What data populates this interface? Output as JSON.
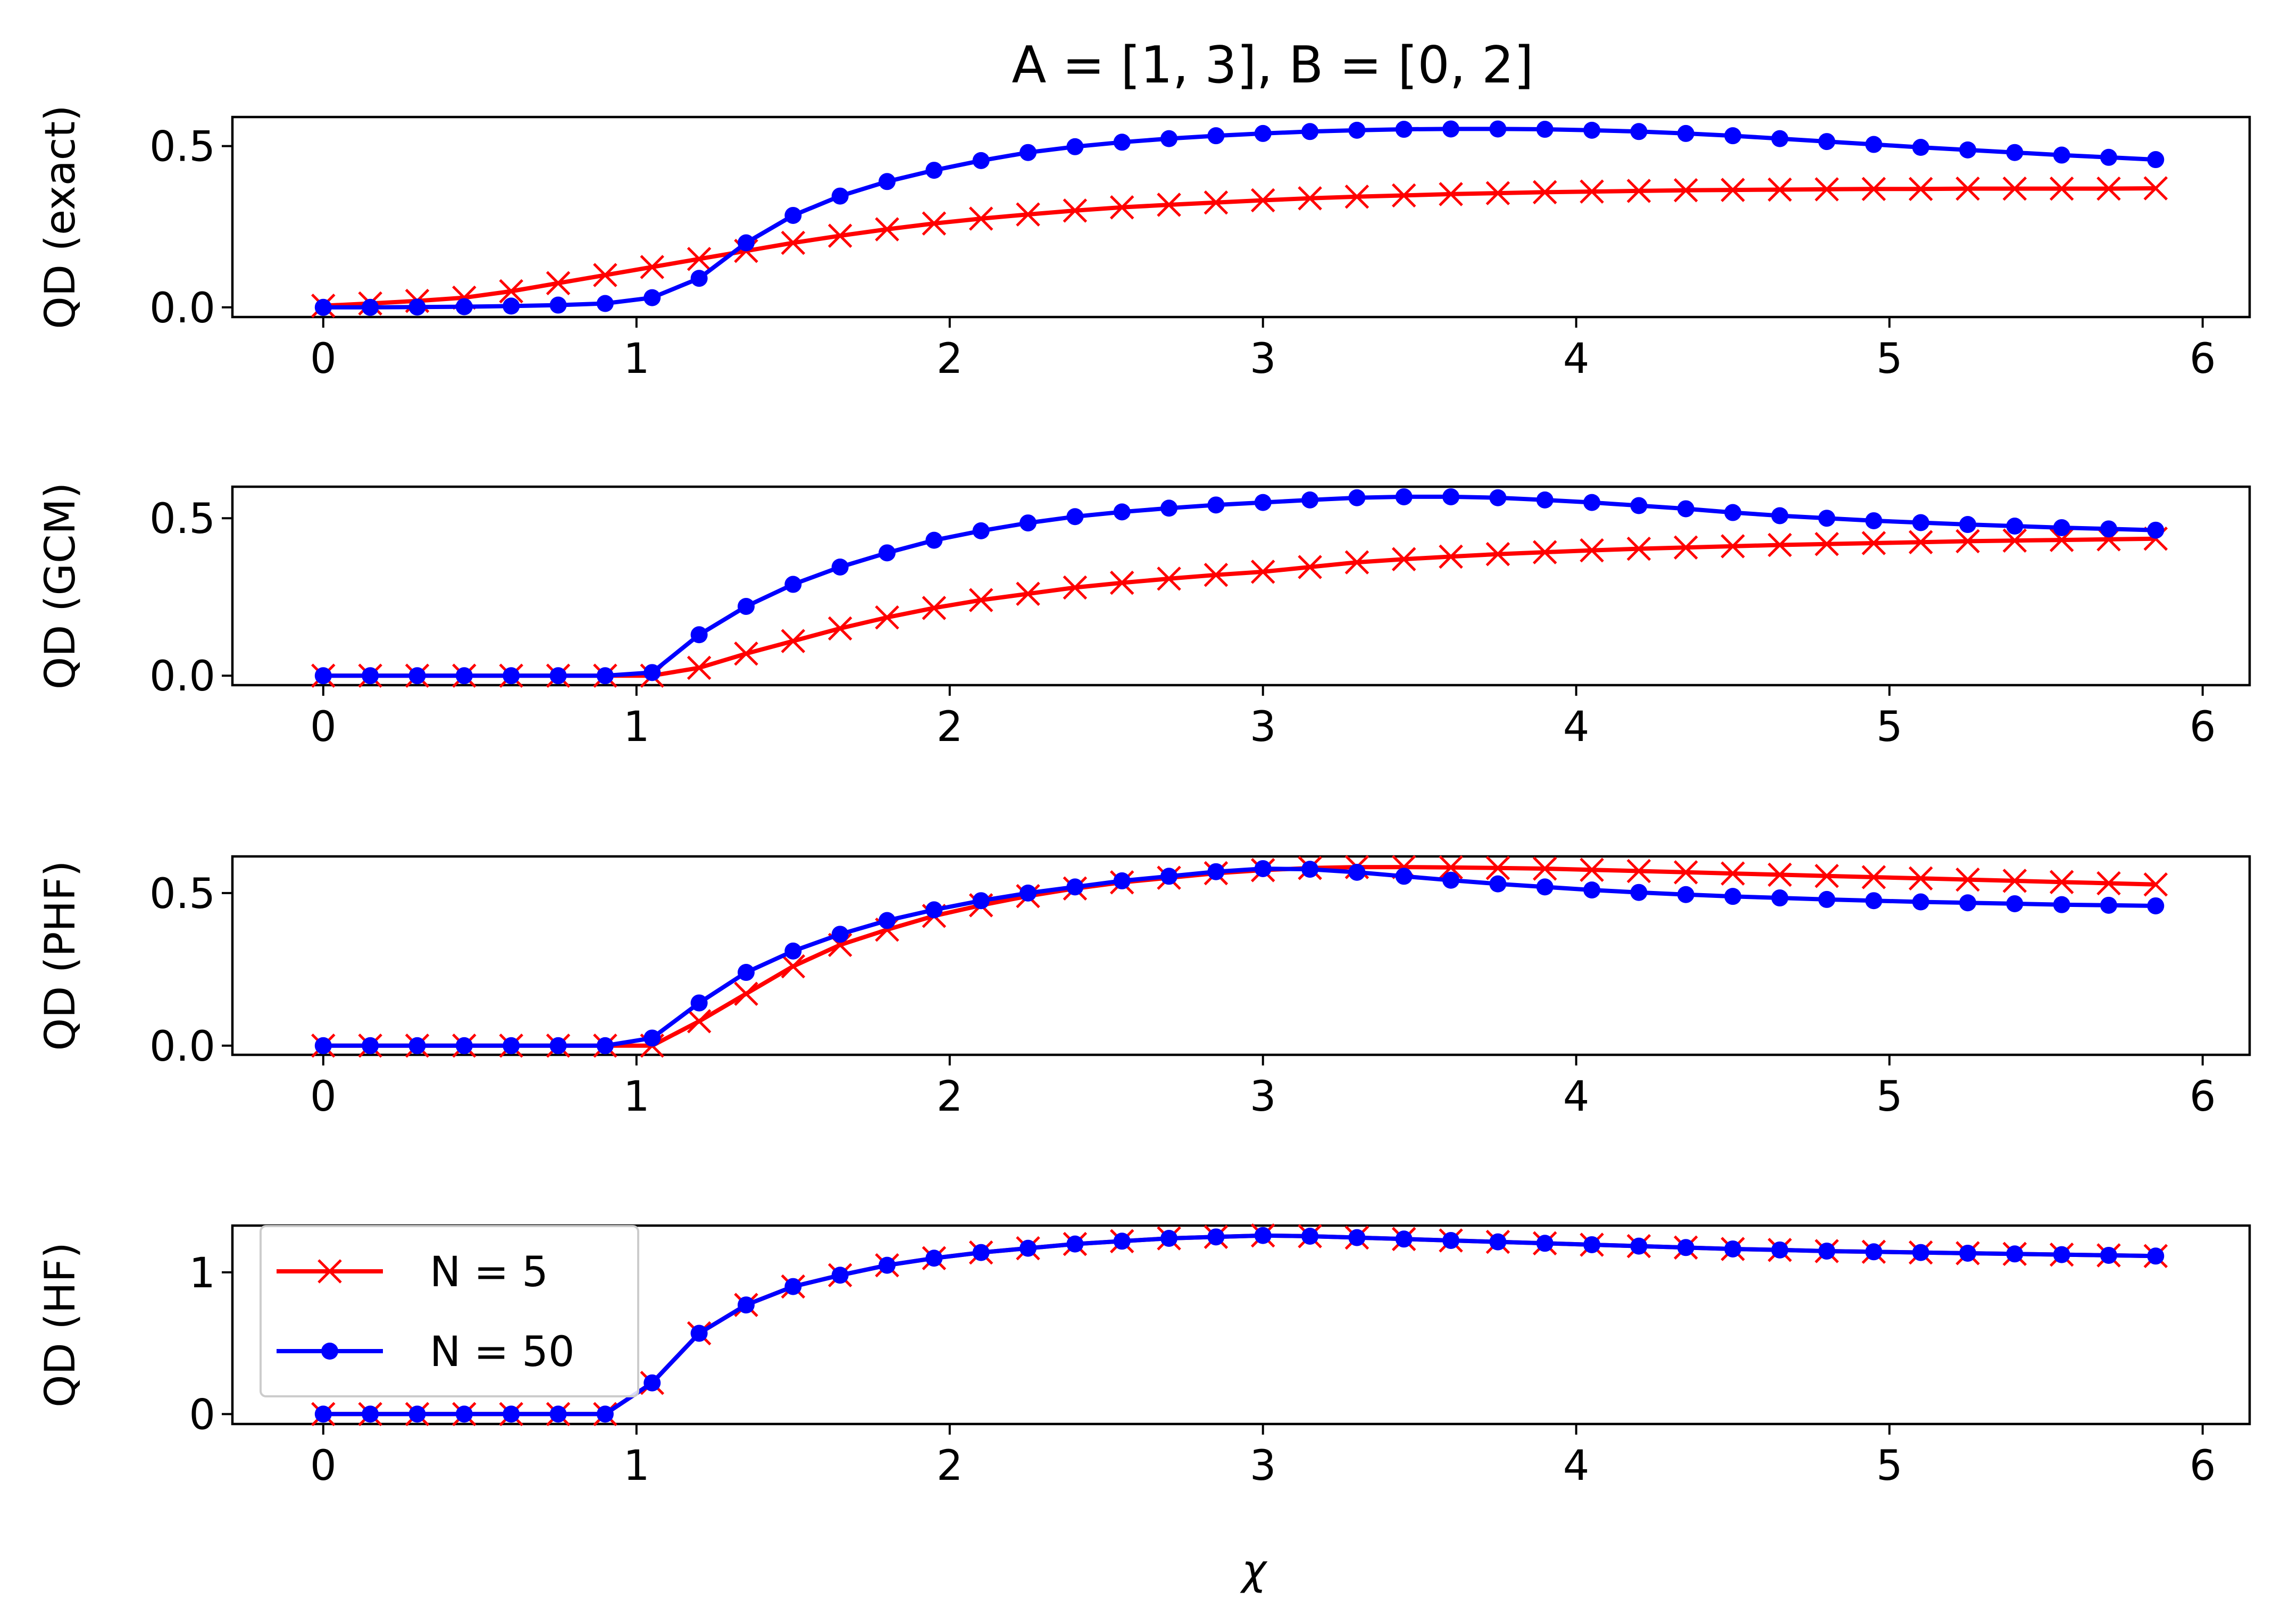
{
  "chart_data": [
    {
      "type": "line",
      "title": "A = [1, 3], B = [0, 2]",
      "xlabel": "",
      "ylabel": "QD (exact)",
      "xlim": [
        -0.29,
        6.15
      ],
      "ylim": [
        -0.03,
        0.59
      ],
      "xticks": [
        "0",
        "1",
        "2",
        "3",
        "4",
        "5",
        "6"
      ],
      "yticks": [
        {
          "value": 0.0,
          "label": "0.0"
        },
        {
          "value": 0.5,
          "label": "0.5"
        }
      ],
      "grid": false,
      "series": [
        {
          "name": "N = 5",
          "color": "#ff0000",
          "marker": "x",
          "values": [
            0.005,
            0.012,
            0.02,
            0.03,
            0.05,
            0.075,
            0.1,
            0.125,
            0.15,
            0.175,
            0.2,
            0.222,
            0.242,
            0.26,
            0.275,
            0.288,
            0.3,
            0.31,
            0.318,
            0.325,
            0.332,
            0.338,
            0.343,
            0.347,
            0.351,
            0.354,
            0.357,
            0.359,
            0.361,
            0.363,
            0.364,
            0.365,
            0.366,
            0.367,
            0.367,
            0.368,
            0.368,
            0.368,
            0.368,
            0.369
          ]
        },
        {
          "name": "N = 50",
          "color": "#0000ff",
          "marker": "dot",
          "values": [
            0.0,
            0.0,
            0.001,
            0.002,
            0.004,
            0.007,
            0.012,
            0.03,
            0.09,
            0.2,
            0.285,
            0.345,
            0.39,
            0.425,
            0.455,
            0.48,
            0.498,
            0.512,
            0.523,
            0.532,
            0.539,
            0.545,
            0.549,
            0.552,
            0.553,
            0.553,
            0.552,
            0.549,
            0.545,
            0.539,
            0.532,
            0.523,
            0.514,
            0.505,
            0.496,
            0.488,
            0.48,
            0.472,
            0.465,
            0.458
          ]
        }
      ]
    },
    {
      "type": "line",
      "title": "",
      "xlabel": "",
      "ylabel": "QD (GCM)",
      "xlim": [
        -0.29,
        6.15
      ],
      "ylim": [
        -0.03,
        0.6
      ],
      "xticks": [
        "0",
        "1",
        "2",
        "3",
        "4",
        "5",
        "6"
      ],
      "yticks": [
        {
          "value": 0.0,
          "label": "0.0"
        },
        {
          "value": 0.5,
          "label": "0.5"
        }
      ],
      "grid": false,
      "series": [
        {
          "name": "N = 5",
          "color": "#ff0000",
          "marker": "x",
          "values": [
            0.0,
            0.0,
            0.0,
            0.0,
            0.0,
            0.0,
            0.0,
            0.0,
            0.025,
            0.07,
            0.11,
            0.15,
            0.185,
            0.215,
            0.24,
            0.26,
            0.28,
            0.295,
            0.308,
            0.32,
            0.33,
            0.345,
            0.36,
            0.37,
            0.378,
            0.386,
            0.392,
            0.398,
            0.403,
            0.407,
            0.411,
            0.415,
            0.418,
            0.421,
            0.424,
            0.427,
            0.429,
            0.431,
            0.433,
            0.435
          ]
        },
        {
          "name": "N = 50",
          "color": "#0000ff",
          "marker": "dot",
          "values": [
            0.0,
            0.0,
            0.0,
            0.0,
            0.0,
            0.0,
            0.0,
            0.01,
            0.13,
            0.22,
            0.29,
            0.345,
            0.39,
            0.43,
            0.46,
            0.485,
            0.505,
            0.52,
            0.532,
            0.542,
            0.55,
            0.558,
            0.565,
            0.568,
            0.568,
            0.565,
            0.558,
            0.55,
            0.54,
            0.53,
            0.518,
            0.508,
            0.5,
            0.492,
            0.486,
            0.48,
            0.475,
            0.47,
            0.466,
            0.462
          ]
        }
      ]
    },
    {
      "type": "line",
      "title": "",
      "xlabel": "",
      "ylabel": "QD (PHF)",
      "xlim": [
        -0.29,
        6.15
      ],
      "ylim": [
        -0.03,
        0.62
      ],
      "xticks": [
        "0",
        "1",
        "2",
        "3",
        "4",
        "5",
        "6"
      ],
      "yticks": [
        {
          "value": 0.0,
          "label": "0.0"
        },
        {
          "value": 0.5,
          "label": "0.5"
        }
      ],
      "grid": false,
      "series": [
        {
          "name": "N = 5",
          "color": "#ff0000",
          "marker": "x",
          "values": [
            0.0,
            0.0,
            0.0,
            0.0,
            0.0,
            0.0,
            0.0,
            0.0,
            0.08,
            0.17,
            0.26,
            0.33,
            0.38,
            0.425,
            0.46,
            0.49,
            0.515,
            0.535,
            0.55,
            0.565,
            0.575,
            0.582,
            0.585,
            0.585,
            0.584,
            0.582,
            0.58,
            0.576,
            0.572,
            0.568,
            0.564,
            0.56,
            0.556,
            0.552,
            0.548,
            0.544,
            0.54,
            0.536,
            0.532,
            0.528
          ]
        },
        {
          "name": "N = 50",
          "color": "#0000ff",
          "marker": "dot",
          "values": [
            0.0,
            0.0,
            0.0,
            0.0,
            0.0,
            0.0,
            0.0,
            0.025,
            0.14,
            0.24,
            0.31,
            0.365,
            0.41,
            0.445,
            0.475,
            0.5,
            0.52,
            0.54,
            0.555,
            0.57,
            0.58,
            0.578,
            0.568,
            0.555,
            0.542,
            0.53,
            0.52,
            0.51,
            0.502,
            0.495,
            0.489,
            0.484,
            0.479,
            0.475,
            0.471,
            0.468,
            0.465,
            0.462,
            0.46,
            0.458
          ]
        }
      ]
    },
    {
      "type": "line",
      "title": "",
      "xlabel": "χ",
      "ylabel": "QD (HF)",
      "xlim": [
        -0.29,
        6.15
      ],
      "ylim": [
        -0.07,
        1.33
      ],
      "xticks": [
        "0",
        "1",
        "2",
        "3",
        "4",
        "5",
        "6"
      ],
      "yticks": [
        {
          "value": 0.0,
          "label": "0"
        },
        {
          "value": 1.0,
          "label": "1"
        }
      ],
      "grid": false,
      "legend": {
        "placement": "upper left",
        "entries": [
          "N = 5",
          "N = 50"
        ]
      },
      "series": [
        {
          "name": "N = 5",
          "color": "#ff0000",
          "marker": "x",
          "values": [
            0.0,
            0.0,
            0.0,
            0.0,
            0.0,
            0.0,
            0.0,
            0.22,
            0.57,
            0.77,
            0.9,
            0.98,
            1.05,
            1.1,
            1.14,
            1.17,
            1.2,
            1.22,
            1.24,
            1.25,
            1.26,
            1.255,
            1.245,
            1.235,
            1.225,
            1.215,
            1.205,
            1.195,
            1.185,
            1.175,
            1.165,
            1.158,
            1.15,
            1.145,
            1.14,
            1.135,
            1.13,
            1.125,
            1.12,
            1.115
          ]
        },
        {
          "name": "N = 50",
          "color": "#0000ff",
          "marker": "dot",
          "values": [
            0.0,
            0.0,
            0.0,
            0.0,
            0.0,
            0.0,
            0.0,
            0.22,
            0.57,
            0.77,
            0.9,
            0.98,
            1.05,
            1.1,
            1.14,
            1.17,
            1.2,
            1.22,
            1.24,
            1.25,
            1.26,
            1.255,
            1.245,
            1.235,
            1.225,
            1.215,
            1.205,
            1.195,
            1.185,
            1.175,
            1.165,
            1.158,
            1.15,
            1.145,
            1.14,
            1.135,
            1.13,
            1.125,
            1.12,
            1.115
          ]
        }
      ]
    }
  ]
}
